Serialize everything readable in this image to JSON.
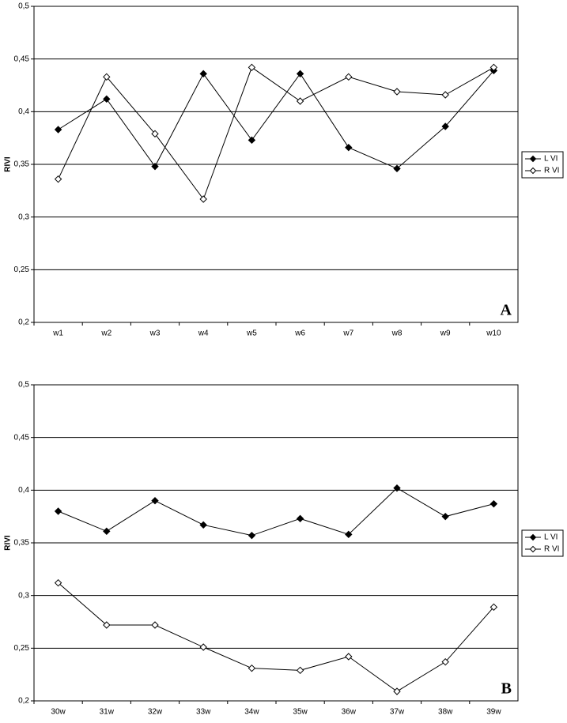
{
  "chart_data": [
    {
      "type": "line",
      "annotation": "A",
      "ylabel": "RIVI",
      "categories": [
        "w1",
        "w2",
        "w3",
        "w4",
        "w5",
        "w6",
        "w7",
        "w8",
        "w9",
        "w10"
      ],
      "series": [
        {
          "name": "L VI",
          "color": "#000000",
          "marker": "filled-diamond",
          "values": [
            0.383,
            0.412,
            0.348,
            0.436,
            0.373,
            0.436,
            0.366,
            0.346,
            0.386,
            0.439
          ]
        },
        {
          "name": "R VI",
          "color": "#000000",
          "marker": "open-diamond",
          "values": [
            0.336,
            0.433,
            0.379,
            0.317,
            0.442,
            0.41,
            0.433,
            0.419,
            0.416,
            0.442
          ]
        }
      ],
      "ylim": [
        0.2,
        0.5
      ],
      "yticks": [
        {
          "value": 0.2,
          "label": "0,2"
        },
        {
          "value": 0.25,
          "label": "0,25"
        },
        {
          "value": 0.3,
          "label": "0,3"
        },
        {
          "value": 0.35,
          "label": "0,35"
        },
        {
          "value": 0.4,
          "label": "0,4"
        },
        {
          "value": 0.45,
          "label": "0,45"
        },
        {
          "value": 0.5,
          "label": "0,5"
        }
      ],
      "grid": true,
      "legend": "right"
    },
    {
      "type": "line",
      "annotation": "B",
      "ylabel": "RIVI",
      "categories": [
        "30w",
        "31w",
        "32w",
        "33w",
        "34w",
        "35w",
        "36w",
        "37w",
        "38w",
        "39w"
      ],
      "series": [
        {
          "name": "L VI",
          "color": "#000000",
          "marker": "filled-diamond",
          "values": [
            0.38,
            0.361,
            0.39,
            0.367,
            0.357,
            0.373,
            0.358,
            0.402,
            0.375,
            0.387
          ]
        },
        {
          "name": "R VI",
          "color": "#000000",
          "marker": "open-diamond",
          "values": [
            0.312,
            0.272,
            0.272,
            0.251,
            0.231,
            0.229,
            0.242,
            0.209,
            0.237,
            0.289
          ]
        }
      ],
      "ylim": [
        0.2,
        0.5
      ],
      "yticks": [
        {
          "value": 0.2,
          "label": "0,2"
        },
        {
          "value": 0.25,
          "label": "0,25"
        },
        {
          "value": 0.3,
          "label": "0,3"
        },
        {
          "value": 0.35,
          "label": "0,35"
        },
        {
          "value": 0.4,
          "label": "0,4"
        },
        {
          "value": 0.45,
          "label": "0,45"
        },
        {
          "value": 0.5,
          "label": "0,5"
        }
      ],
      "grid": true,
      "legend": "right"
    }
  ]
}
